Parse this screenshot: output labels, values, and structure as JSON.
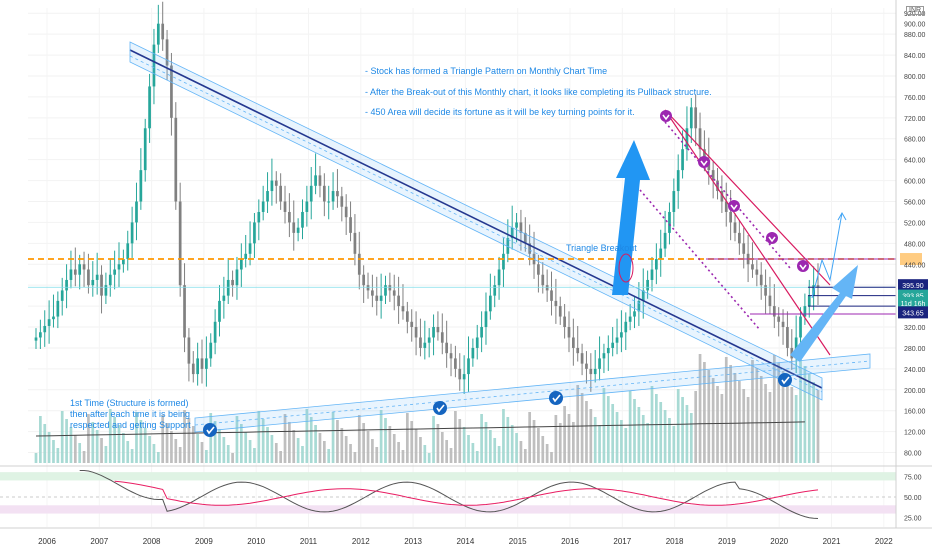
{
  "header": {
    "currency": "INR"
  },
  "notes": [
    "- Stock has formed a Triangle Pattern on Monthly Chart Time",
    "- After the Break-out of this Monthly chart, it looks like completing its Pullback structure.",
    "- 450 Area will decide its fortune as it will be key turning points for it."
  ],
  "annotations": {
    "breakout": "Triangle Breakout",
    "structure": [
      "1st Time (Structure is formed)",
      "then after each time it is being",
      "respected and getting Support"
    ]
  },
  "price_tags": {
    "top": "900.00",
    "level_a": "395.90",
    "level_b": "393.85",
    "countdown": "11d 16h",
    "level_c": "343.65"
  },
  "colors": {
    "up": "#26a69a",
    "down": "#808080",
    "trend": "#1a237e",
    "channel": "#64b5f6",
    "orange": "#ff9800",
    "magenta": "#d81b60",
    "purple": "#9c27b0",
    "blue": "#1565c0",
    "rsi_zone_high": "#dff3e4",
    "rsi_zone_low": "#f3e1f3"
  },
  "chart_data": {
    "type": "candlestick",
    "timeframe": "monthly",
    "y_axis": {
      "min": 60,
      "max": 930,
      "ticks": [
        80,
        120,
        160,
        200,
        240,
        280,
        320,
        360,
        400,
        440,
        480,
        520,
        560,
        600,
        640,
        680,
        720,
        760,
        800,
        840,
        880,
        920
      ]
    },
    "x_axis": {
      "ticks": [
        "2006",
        "2007",
        "2008",
        "2009",
        "2010",
        "2011",
        "2012",
        "2013",
        "2014",
        "2015",
        "2016",
        "2017",
        "2018",
        "2019",
        "2020",
        "2021",
        "2022"
      ]
    },
    "key_level": 450,
    "closes": [
      300,
      310,
      322,
      335,
      340,
      370,
      390,
      410,
      430,
      420,
      440,
      430,
      400,
      410,
      420,
      380,
      400,
      420,
      430,
      440,
      450,
      480,
      520,
      560,
      620,
      700,
      780,
      860,
      900,
      870,
      820,
      720,
      560,
      400,
      300,
      250,
      230,
      260,
      240,
      260,
      290,
      330,
      370,
      380,
      410,
      400,
      430,
      450,
      460,
      480,
      520,
      540,
      560,
      580,
      600,
      590,
      560,
      540,
      520,
      500,
      510,
      540,
      560,
      590,
      610,
      590,
      560,
      560,
      580,
      570,
      550,
      530,
      500,
      460,
      420,
      400,
      390,
      380,
      370,
      380,
      400,
      390,
      380,
      360,
      350,
      330,
      320,
      300,
      280,
      290,
      300,
      320,
      310,
      290,
      270,
      260,
      240,
      220,
      230,
      260,
      280,
      300,
      320,
      350,
      380,
      400,
      430,
      460,
      490,
      510,
      520,
      500,
      480,
      460,
      440,
      420,
      400,
      390,
      370,
      360,
      340,
      320,
      300,
      280,
      270,
      250,
      240,
      230,
      240,
      260,
      270,
      280,
      290,
      300,
      310,
      330,
      340,
      350,
      370,
      390,
      410,
      430,
      450,
      470,
      500,
      540,
      580,
      620,
      660,
      700,
      740,
      700,
      660,
      640,
      620,
      600,
      580,
      560,
      540,
      520,
      500,
      480,
      460,
      440,
      430,
      420,
      400,
      380,
      360,
      340,
      330,
      320,
      280,
      260,
      300,
      340,
      360,
      380,
      400,
      396
    ],
    "rsi": {
      "levels": [
        70,
        30
      ],
      "ticks": [
        75,
        50,
        25
      ]
    }
  }
}
